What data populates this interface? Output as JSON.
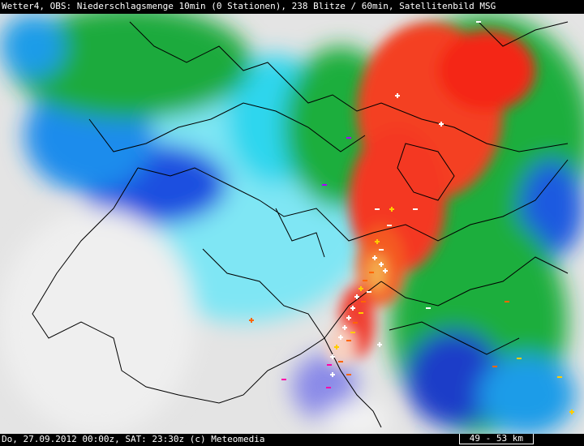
{
  "header": {
    "title": "Wetter4, OBS: Niederschlagsmenge 10min (0 Stationen), 238 Blitze / 60min, Satellitenbild MSG"
  },
  "footer": {
    "info": "Do, 27.09.2012 00:00z, SAT: 23:30z (c) Meteomedia",
    "scale": "49 - 53 km"
  }
}
